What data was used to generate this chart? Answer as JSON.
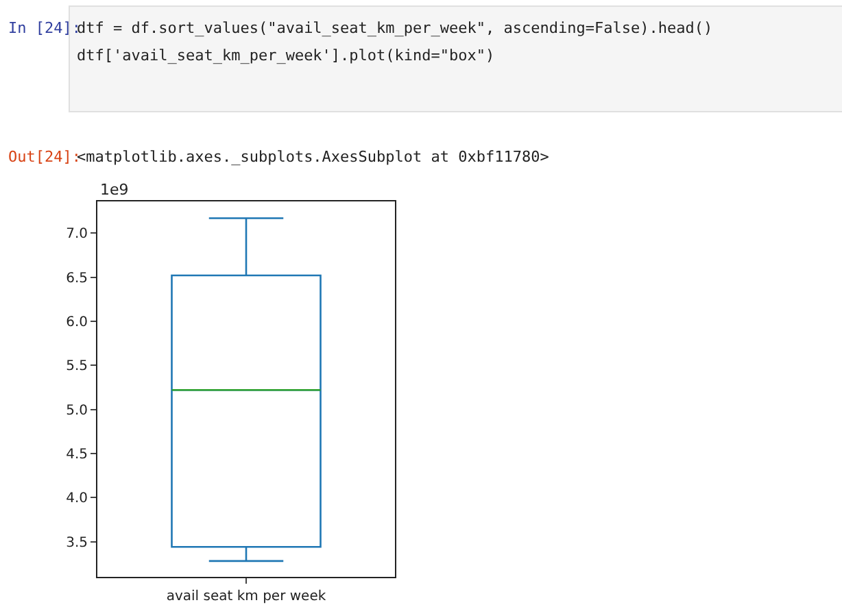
{
  "chart_data": {
    "type": "box",
    "categories": [
      "avail seat km per week"
    ],
    "series": [
      {
        "color": "#1f77b4",
        "boxes": [
          {
            "low": 3.28,
            "q1": 3.44,
            "median": 5.22,
            "q3": 6.52,
            "high": 7.17
          }
        ]
      }
    ],
    "ylim": [
      3.1,
      7.36
    ],
    "yticks": [
      3.5,
      {
        "value": 4,
        "label": "4.0"
      },
      4.5,
      {
        "value": 5,
        "label": "5.0"
      },
      5.5,
      {
        "value": 6,
        "label": "6.0"
      },
      6.5,
      {
        "value": 7,
        "label": "7.0"
      }
    ],
    "grid": false,
    "legend": false,
    "annotations": [
      "In [24]:",
      "dtf = df.sort_values(\"avail_seat_km_per_week\", ascending=False).head()",
      "dtf['avail_seat_km_per_week'].plot(kind=\"box\")",
      "Out[24]:",
      "<matplotlib.axes._subplots.AxesSubplot at 0xbf11780>",
      "1e9"
    ]
  }
}
